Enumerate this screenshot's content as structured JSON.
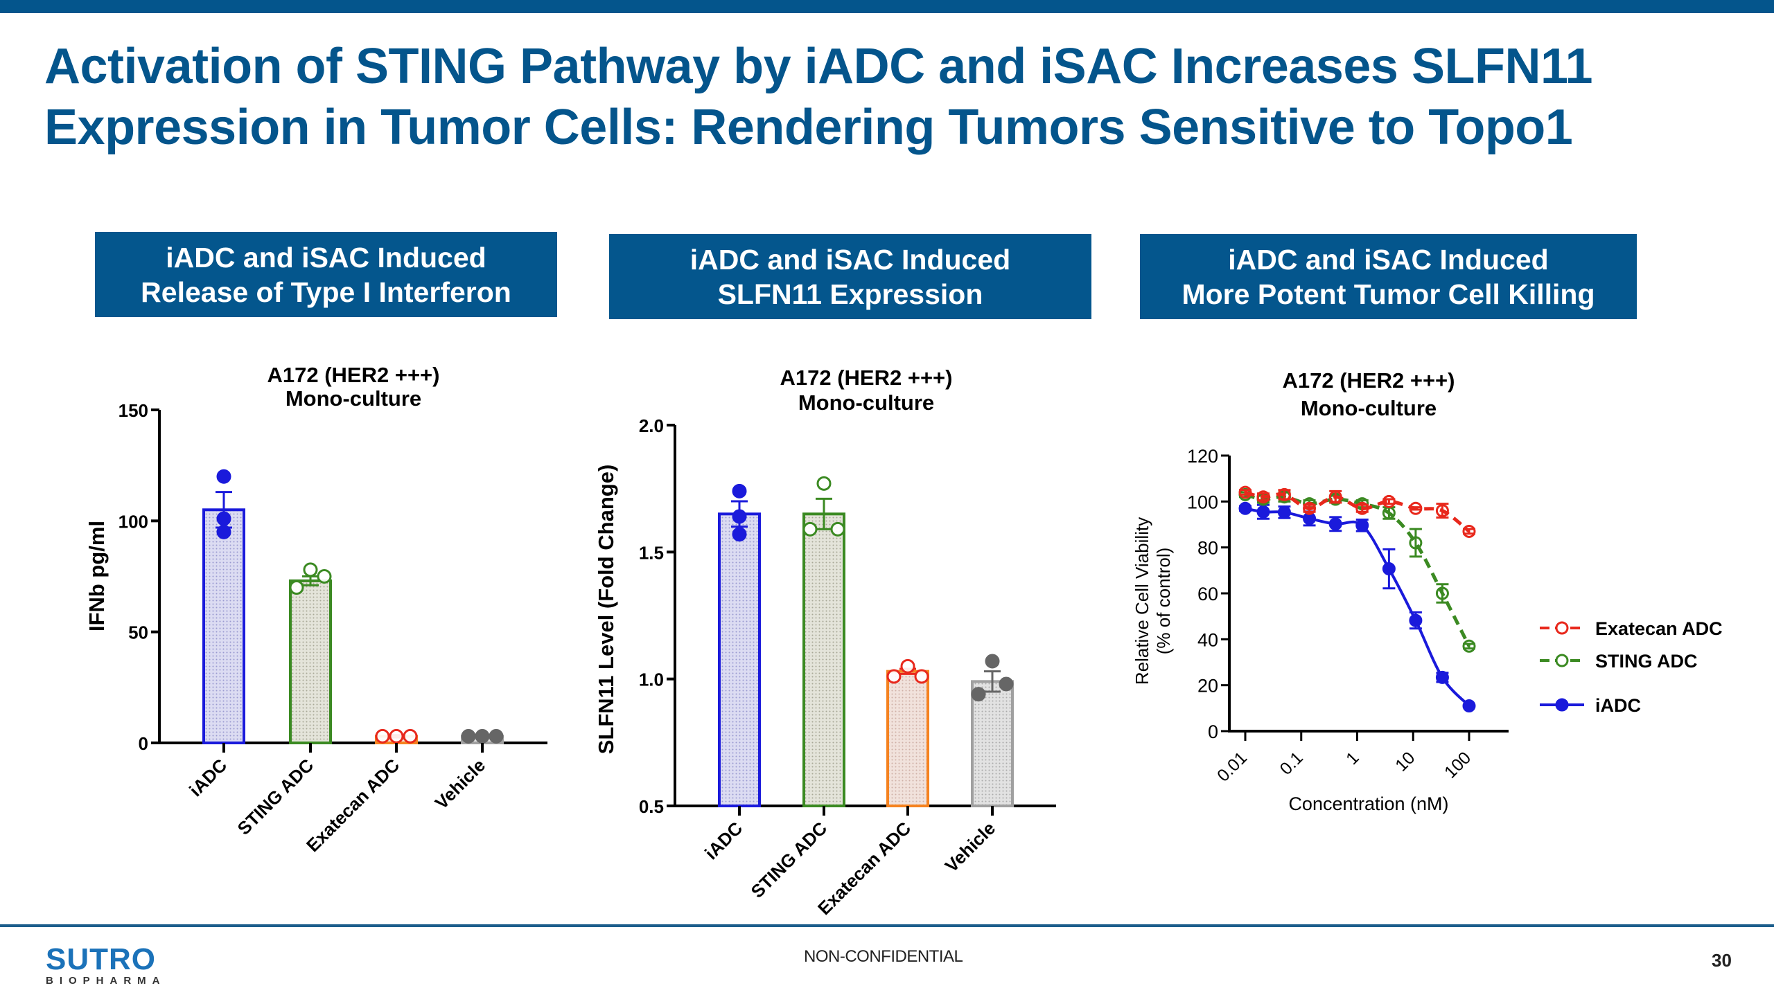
{
  "slide": {
    "title_lines": [
      "Activation of STING Pathway by iADC and iSAC Increases SLFN11",
      "Expression in Tumor Cells: Rendering Tumors Sensitive to Topo1"
    ],
    "panels": [
      {
        "header_lines": [
          "iADC and iSAC Induced",
          "Release of Type I Interferon"
        ]
      },
      {
        "header_lines": [
          "iADC and iSAC Induced",
          "SLFN11 Expression"
        ]
      },
      {
        "header_lines": [
          "iADC and iSAC Induced",
          "More Potent Tumor Cell Killing"
        ]
      }
    ],
    "footer": {
      "logo_main": "SUTRO",
      "logo_sub": "BIOPHARMA",
      "confidentiality": "NON-CONFIDENTIAL",
      "page_number": "30"
    },
    "colors": {
      "brand_blue": "#04558c",
      "iADC": "#1a1adb",
      "STING_ADC": "#3b8a22",
      "Exatecan_ADC": "#e8281c",
      "Exatecan_bar": "#f5821f",
      "Vehicle": "#666666",
      "Vehicle_bar": "#a0a0a0"
    }
  },
  "chart_data": [
    {
      "type": "bar",
      "title": "A172 (HER2 +++)\nMono-culture",
      "title_lines": [
        "A172 (HER2 +++)",
        "Mono-culture"
      ],
      "xlabel": "",
      "ylabel": "IFNb pg/ml",
      "ylim": [
        0,
        150
      ],
      "yticks": [
        0,
        50,
        100,
        150
      ],
      "ytick_labels": [
        "0",
        "50",
        "100",
        "150"
      ],
      "categories": [
        "iADC",
        "STING ADC",
        "Exatecan ADC",
        "Vehicle"
      ],
      "values": [
        105,
        73,
        3,
        3
      ],
      "error_sem": [
        8,
        2,
        0.5,
        0.5
      ],
      "points": [
        [
          120,
          101,
          95
        ],
        [
          78,
          70,
          75
        ],
        [
          3,
          3,
          3
        ],
        [
          3,
          3,
          3
        ]
      ],
      "marker_fill": [
        "filled",
        "open",
        "open",
        "filled"
      ],
      "grid": false
    },
    {
      "type": "bar",
      "title": "A172 (HER2 +++)\nMono-culture",
      "title_lines": [
        "A172 (HER2 +++)",
        "Mono-culture"
      ],
      "xlabel": "",
      "ylabel": "SLFN11 Level (Fold Change)",
      "ylim": [
        0.5,
        2.0
      ],
      "yticks": [
        0.5,
        1.0,
        1.5,
        2.0
      ],
      "ytick_labels": [
        "0.5",
        "1.0",
        "1.5",
        "2.0"
      ],
      "categories": [
        "iADC",
        "STING ADC",
        "Exatecan ADC",
        "Vehicle"
      ],
      "values": [
        1.65,
        1.65,
        1.03,
        0.99
      ],
      "error_sem": [
        0.05,
        0.06,
        0.01,
        0.04
      ],
      "points": [
        [
          1.74,
          1.64,
          1.57
        ],
        [
          1.59,
          1.77,
          1.59
        ],
        [
          1.01,
          1.05,
          1.01
        ],
        [
          0.94,
          1.07,
          0.98
        ]
      ],
      "marker_fill": [
        "filled",
        "open",
        "open",
        "filled"
      ],
      "grid": false
    },
    {
      "type": "line",
      "title": "A172 (HER2 +++)\nMono-culture",
      "title_lines": [
        "A172 (HER2 +++)",
        "Mono-culture"
      ],
      "xlabel": "Concentration (nM)",
      "ylabel_lines": [
        "Relative Cell Viability",
        "(% of control)"
      ],
      "ylabel": "Relative Cell Viability (% of control)",
      "xscale": "log",
      "xlim": [
        0.006,
        400
      ],
      "xticks": [
        0.01,
        0.1,
        1,
        10,
        100
      ],
      "xtick_labels": [
        "0.01",
        "0.1",
        "1",
        "10",
        "100"
      ],
      "ylim": [
        0,
        120
      ],
      "yticks": [
        0,
        20,
        40,
        60,
        80,
        100,
        120
      ],
      "ytick_labels": [
        "0",
        "20",
        "40",
        "60",
        "80",
        "100",
        "120"
      ],
      "x": [
        0.01,
        0.021,
        0.05,
        0.14,
        0.41,
        1.23,
        3.7,
        11.1,
        33.3,
        100
      ],
      "series": [
        {
          "name": "Exatecan ADC",
          "style": "dashed",
          "marker": "open-circle",
          "values": [
            104,
            102,
            103,
            97,
            102,
            97,
            100,
            97,
            96,
            87
          ],
          "errors": [
            1,
            1.5,
            2,
            1.5,
            2.5,
            1.5,
            1,
            0.5,
            3,
            1
          ]
        },
        {
          "name": "STING ADC",
          "style": "dashed",
          "marker": "open-circle",
          "values": [
            103,
            101,
            102,
            99,
            101,
            99,
            95,
            82,
            60,
            37
          ],
          "errors": [
            1,
            1.5,
            2,
            1.5,
            1.5,
            1.5,
            2.5,
            6,
            4,
            1
          ]
        },
        {
          "name": "iADC",
          "style": "solid",
          "marker": "filled-circle",
          "values": [
            97,
            95.5,
            95.3,
            92.6,
            90.2,
            89.6,
            70.7,
            48.2,
            23.4,
            11.0
          ],
          "errors": [
            1,
            3,
            2.5,
            3,
            3,
            2.5,
            8.5,
            3.5,
            2,
            0.5
          ]
        }
      ],
      "legend": [
        "Exatecan ADC",
        "STING ADC",
        "iADC"
      ],
      "legend_placement": "right",
      "grid": false
    }
  ]
}
